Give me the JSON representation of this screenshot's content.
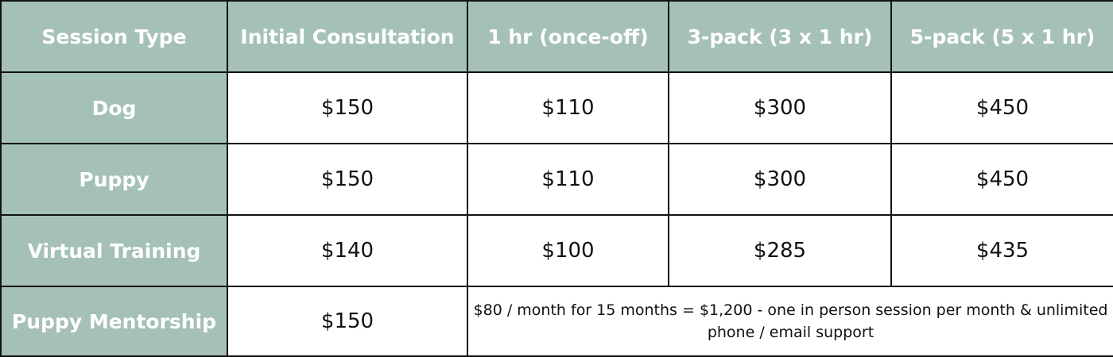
{
  "table": {
    "headers": [
      "Session Type",
      "Initial Consultation",
      "1 hr (once-off)",
      "3-pack (3 x 1 hr)",
      "5-pack (5 x 1 hr)"
    ],
    "rows": [
      {
        "type": "Dog",
        "cells": [
          "$150",
          "$110",
          "$300",
          "$450"
        ]
      },
      {
        "type": "Puppy",
        "cells": [
          "$150",
          "$110",
          "$300",
          "$450"
        ]
      },
      {
        "type": "Virtual Training",
        "cells": [
          "$140",
          "$100",
          "$285",
          "$435"
        ]
      }
    ],
    "mentorship": {
      "type": "Puppy Mentorship",
      "initial": "$150",
      "note": "$80 / month for 15 months = $1,200 - one in person session per month & unlimited phone / email support"
    }
  },
  "colors": {
    "header_bg": "#a5c1b5",
    "header_text": "#ffffff",
    "border": "#111111"
  }
}
